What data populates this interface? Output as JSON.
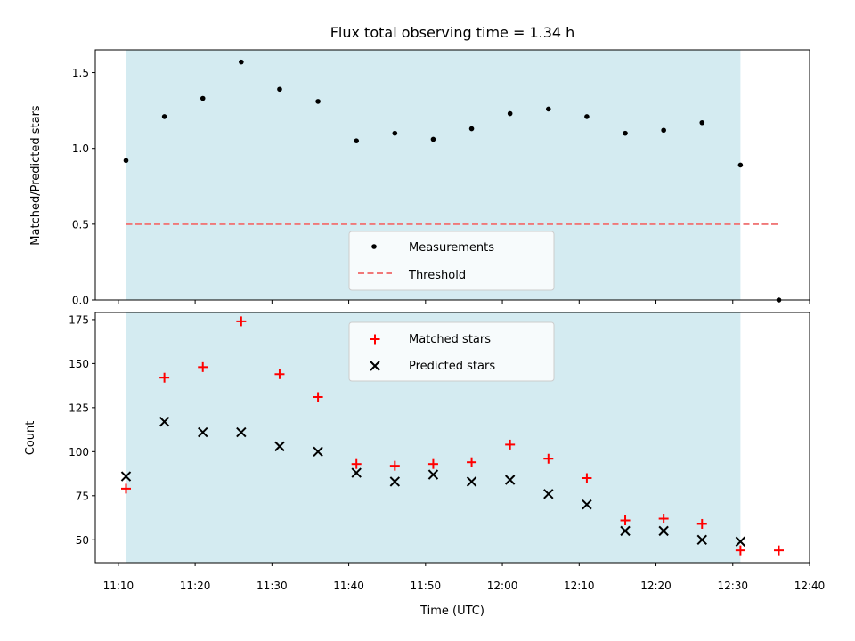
{
  "chart_data": [
    {
      "type": "scatter",
      "title": "Flux total observing time = 1.34 h",
      "xlabel": "",
      "ylabel": "Matched/Predicted stars",
      "xlim": [
        "11:07",
        "12:40"
      ],
      "ylim": [
        0,
        1.65
      ],
      "grid": false,
      "legend_position": "bottom-center",
      "yticks": [
        "0.0",
        "0.5",
        "1.0",
        "1.5"
      ],
      "observing_window": {
        "start": "11:11",
        "end": "12:31",
        "color": "#d4ebf1"
      },
      "series": [
        {
          "name": "Measurements",
          "marker": "dot",
          "color": "#000000",
          "x": [
            "11:11",
            "11:16",
            "11:21",
            "11:26",
            "11:31",
            "11:36",
            "11:41",
            "11:46",
            "11:51",
            "11:56",
            "12:01",
            "12:06",
            "12:11",
            "12:16",
            "12:21",
            "12:26",
            "12:31",
            "12:36"
          ],
          "y": [
            0.92,
            1.21,
            1.33,
            1.57,
            1.39,
            1.31,
            1.05,
            1.1,
            1.06,
            1.13,
            1.23,
            1.26,
            1.21,
            1.1,
            1.12,
            1.17,
            0.89,
            0.0
          ]
        },
        {
          "name": "Threshold",
          "marker": "dashed-line",
          "color": "#f07878",
          "x": [
            "11:11",
            "12:36"
          ],
          "y": [
            0.5,
            0.5
          ]
        }
      ]
    },
    {
      "type": "scatter",
      "title": "",
      "xlabel": "Time (UTC)",
      "ylabel": "Count",
      "xlim": [
        "11:07",
        "12:40"
      ],
      "ylim": [
        37,
        179
      ],
      "grid": false,
      "legend_position": "top-center",
      "xticks": [
        "11:10",
        "11:20",
        "11:30",
        "11:40",
        "11:50",
        "12:00",
        "12:10",
        "12:20",
        "12:30",
        "12:40"
      ],
      "yticks": [
        "50",
        "75",
        "100",
        "125",
        "150",
        "175"
      ],
      "observing_window": {
        "start": "11:11",
        "end": "12:31",
        "color": "#d4ebf1"
      },
      "series": [
        {
          "name": "Matched stars",
          "marker": "plus",
          "color": "#ff0000",
          "x": [
            "11:11",
            "11:16",
            "11:21",
            "11:26",
            "11:31",
            "11:36",
            "11:41",
            "11:46",
            "11:51",
            "11:56",
            "12:01",
            "12:06",
            "12:11",
            "12:16",
            "12:21",
            "12:26",
            "12:31",
            "12:36"
          ],
          "y": [
            79,
            142,
            148,
            174,
            144,
            131,
            93,
            92,
            93,
            94,
            104,
            96,
            85,
            61,
            62,
            59,
            44,
            44
          ]
        },
        {
          "name": "Predicted stars",
          "marker": "x",
          "color": "#000000",
          "x": [
            "11:11",
            "11:16",
            "11:21",
            "11:26",
            "11:31",
            "11:36",
            "11:41",
            "11:46",
            "11:51",
            "11:56",
            "12:01",
            "12:06",
            "12:11",
            "12:16",
            "12:21",
            "12:26",
            "12:31"
          ],
          "y": [
            86,
            117,
            111,
            111,
            103,
            100,
            88,
            83,
            87,
            83,
            84,
            76,
            70,
            55,
            55,
            50,
            49
          ]
        }
      ]
    }
  ]
}
